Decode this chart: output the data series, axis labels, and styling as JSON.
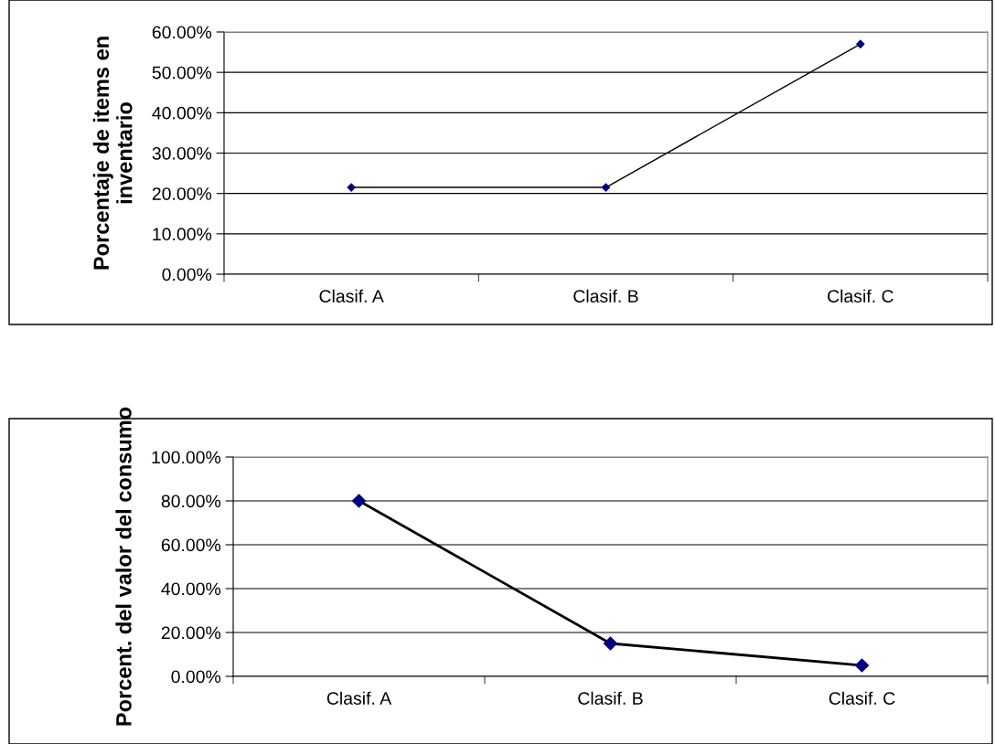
{
  "chart_data": [
    {
      "type": "line",
      "ylabel": "Porcentaje de items en inventario",
      "categories": [
        "Clasif. A",
        "Clasif. B",
        "Clasif. C"
      ],
      "series": [
        {
          "color": "#000080",
          "values": [
            21.5,
            21.5,
            57
          ]
        }
      ],
      "ylim": [
        0,
        60
      ],
      "yticks": [
        {
          "value": 0,
          "label": "0.00%"
        },
        {
          "value": 10,
          "label": "10.00%"
        },
        {
          "value": 20,
          "label": "20.00%"
        },
        {
          "value": 30,
          "label": "30.00%"
        },
        {
          "value": 40,
          "label": "40.00%"
        },
        {
          "value": 50,
          "label": "50.00%"
        },
        {
          "value": 60,
          "label": "60.00%"
        }
      ],
      "grid": "y",
      "marker": "diamond",
      "line_style": "solid",
      "legend": false
    },
    {
      "type": "line",
      "ylabel": "Porcent. del valor del consumo",
      "categories": [
        "Clasif. A",
        "Clasif. B",
        "Clasif. C"
      ],
      "series": [
        {
          "color": "#000080",
          "values": [
            80,
            15,
            5
          ]
        }
      ],
      "ylim": [
        0,
        100
      ],
      "yticks": [
        {
          "value": 0,
          "label": "0.00%"
        },
        {
          "value": 20,
          "label": "20.00%"
        },
        {
          "value": 40,
          "label": "40.00%"
        },
        {
          "value": 60,
          "label": "60.00%"
        },
        {
          "value": 80,
          "label": "80.00%"
        },
        {
          "value": 100,
          "label": "100.00%"
        }
      ],
      "grid": "y",
      "marker": "diamond",
      "line_style": "solid",
      "legend": false
    }
  ]
}
